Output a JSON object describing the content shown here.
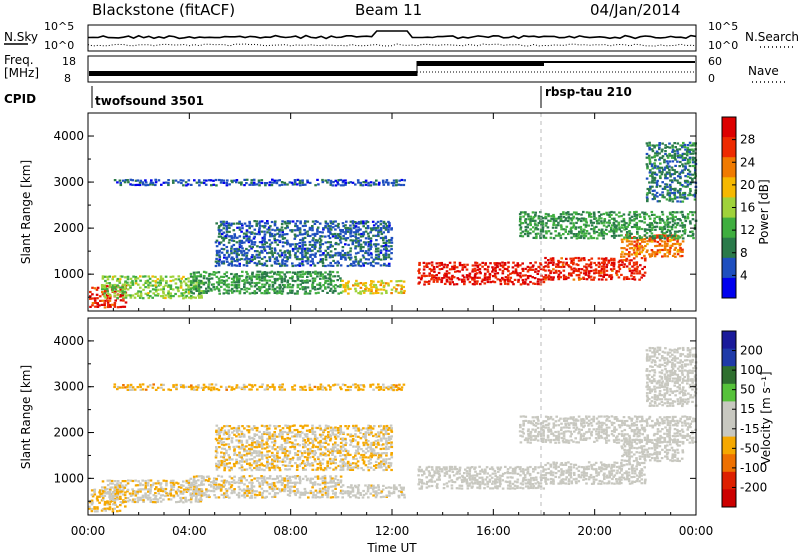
{
  "header": {
    "title": "Blackstone (fitACF)",
    "beam": "Beam 11",
    "date": "04/Jan/2014"
  },
  "strip": {
    "nsky_label": "N.Sky",
    "nsearch_label": "N.Search",
    "nsky_ticks": [
      "10^5",
      "10^0"
    ],
    "nsky_right_ticks": [
      "10^5",
      "10^0"
    ],
    "freq_label_top": "Freq.",
    "freq_label_bottom": "[MHz]",
    "freq_ticks": [
      "18",
      "8"
    ],
    "nave_label": "Nave",
    "nave_ticks": [
      "60",
      "0"
    ],
    "cpid_label": "CPID",
    "cpid_modes": [
      {
        "name": "twofsound 3501",
        "start_hour": 0
      },
      {
        "name": "rbsp-tau 210",
        "start_hour": 18
      }
    ]
  },
  "x_axis": {
    "title": "Time UT",
    "ticks": [
      "00:00",
      "04:00",
      "08:00",
      "12:00",
      "16:00",
      "20:00",
      "00:00"
    ]
  },
  "colors": {
    "power_scale": [
      "#0000ee",
      "#1e4fbf",
      "#2a7a4a",
      "#3fae3f",
      "#9fd23a",
      "#f5b800",
      "#f07a00",
      "#ee2a00",
      "#dd0000"
    ],
    "velocity_scale": [
      "#1a1a9a",
      "#1f3aa8",
      "#2f6f2f",
      "#56c23a",
      "#c8c8c0",
      "#c8c8c0",
      "#f5a800",
      "#ee7000",
      "#dd2000",
      "#cc0000"
    ]
  },
  "chart_data": [
    {
      "type": "heatmap",
      "name": "power_panel",
      "ylabel": "Slant Range [km]",
      "y_ticks": [
        "1000",
        "2000",
        "3000",
        "4000"
      ],
      "ylim": [
        200,
        4500
      ],
      "xlim": [
        0,
        24
      ],
      "colorbar_label": "Power [dB]",
      "colorbar_ticks": [
        "28",
        "24",
        "20",
        "16",
        "12",
        "8",
        "4"
      ],
      "colorbar_range": [
        0,
        30
      ],
      "regions": [
        {
          "t0": 0.0,
          "t1": 1.5,
          "r0": 300,
          "r1": 800,
          "level": 26
        },
        {
          "t0": 0.5,
          "t1": 4.5,
          "r0": 500,
          "r1": 1000,
          "level": 14
        },
        {
          "t0": 4.0,
          "t1": 10.0,
          "r0": 600,
          "r1": 1100,
          "level": 10
        },
        {
          "t0": 10.0,
          "t1": 12.5,
          "r0": 600,
          "r1": 900,
          "level": 18
        },
        {
          "t0": 13.0,
          "t1": 18.0,
          "r0": 800,
          "r1": 1300,
          "level": 27
        },
        {
          "t0": 18.0,
          "t1": 22.0,
          "r0": 900,
          "r1": 1400,
          "level": 26
        },
        {
          "t0": 21.0,
          "t1": 23.5,
          "r0": 1400,
          "r1": 1900,
          "level": 22
        },
        {
          "t0": 5.0,
          "t1": 12.0,
          "r0": 1200,
          "r1": 2200,
          "level": 6
        },
        {
          "t0": 17.0,
          "t1": 24.0,
          "r0": 1800,
          "r1": 2400,
          "level": 10
        },
        {
          "t0": 1.0,
          "t1": 12.5,
          "r0": 2950,
          "r1": 3100,
          "level": 5
        },
        {
          "t0": 22.0,
          "t1": 24.0,
          "r0": 2600,
          "r1": 3900,
          "level": 8
        }
      ]
    },
    {
      "type": "heatmap",
      "name": "velocity_panel",
      "ylabel": "Slant Range [km]",
      "y_ticks": [
        "1000",
        "2000",
        "3000",
        "4000"
      ],
      "ylim": [
        200,
        4500
      ],
      "xlim": [
        0,
        24
      ],
      "colorbar_label": "Velocity [m s⁻¹]",
      "colorbar_ticks": [
        "200",
        "100",
        "50",
        "15",
        "-15",
        "-50",
        "-100",
        "-200"
      ],
      "colorbar_range": [
        -250,
        250
      ],
      "regions": [
        {
          "t0": 0.0,
          "t1": 1.5,
          "r0": 300,
          "r1": 800,
          "level": -60
        },
        {
          "t0": 0.5,
          "t1": 4.5,
          "r0": 500,
          "r1": 1000,
          "level": -40
        },
        {
          "t0": 4.0,
          "t1": 10.0,
          "r0": 600,
          "r1": 1100,
          "level": -30
        },
        {
          "t0": 10.0,
          "t1": 12.5,
          "r0": 600,
          "r1": 900,
          "level": -20
        },
        {
          "t0": 13.0,
          "t1": 18.0,
          "r0": 800,
          "r1": 1300,
          "level": 0
        },
        {
          "t0": 18.0,
          "t1": 22.0,
          "r0": 900,
          "r1": 1400,
          "level": 0
        },
        {
          "t0": 21.0,
          "t1": 23.5,
          "r0": 1400,
          "r1": 1900,
          "level": 0
        },
        {
          "t0": 5.0,
          "t1": 12.0,
          "r0": 1200,
          "r1": 2200,
          "level": -45
        },
        {
          "t0": 17.0,
          "t1": 24.0,
          "r0": 1800,
          "r1": 2400,
          "level": 0
        },
        {
          "t0": 1.0,
          "t1": 12.5,
          "r0": 2950,
          "r1": 3100,
          "level": -70
        },
        {
          "t0": 22.0,
          "t1": 24.0,
          "r0": 2600,
          "r1": 3900,
          "level": 0
        }
      ]
    }
  ]
}
